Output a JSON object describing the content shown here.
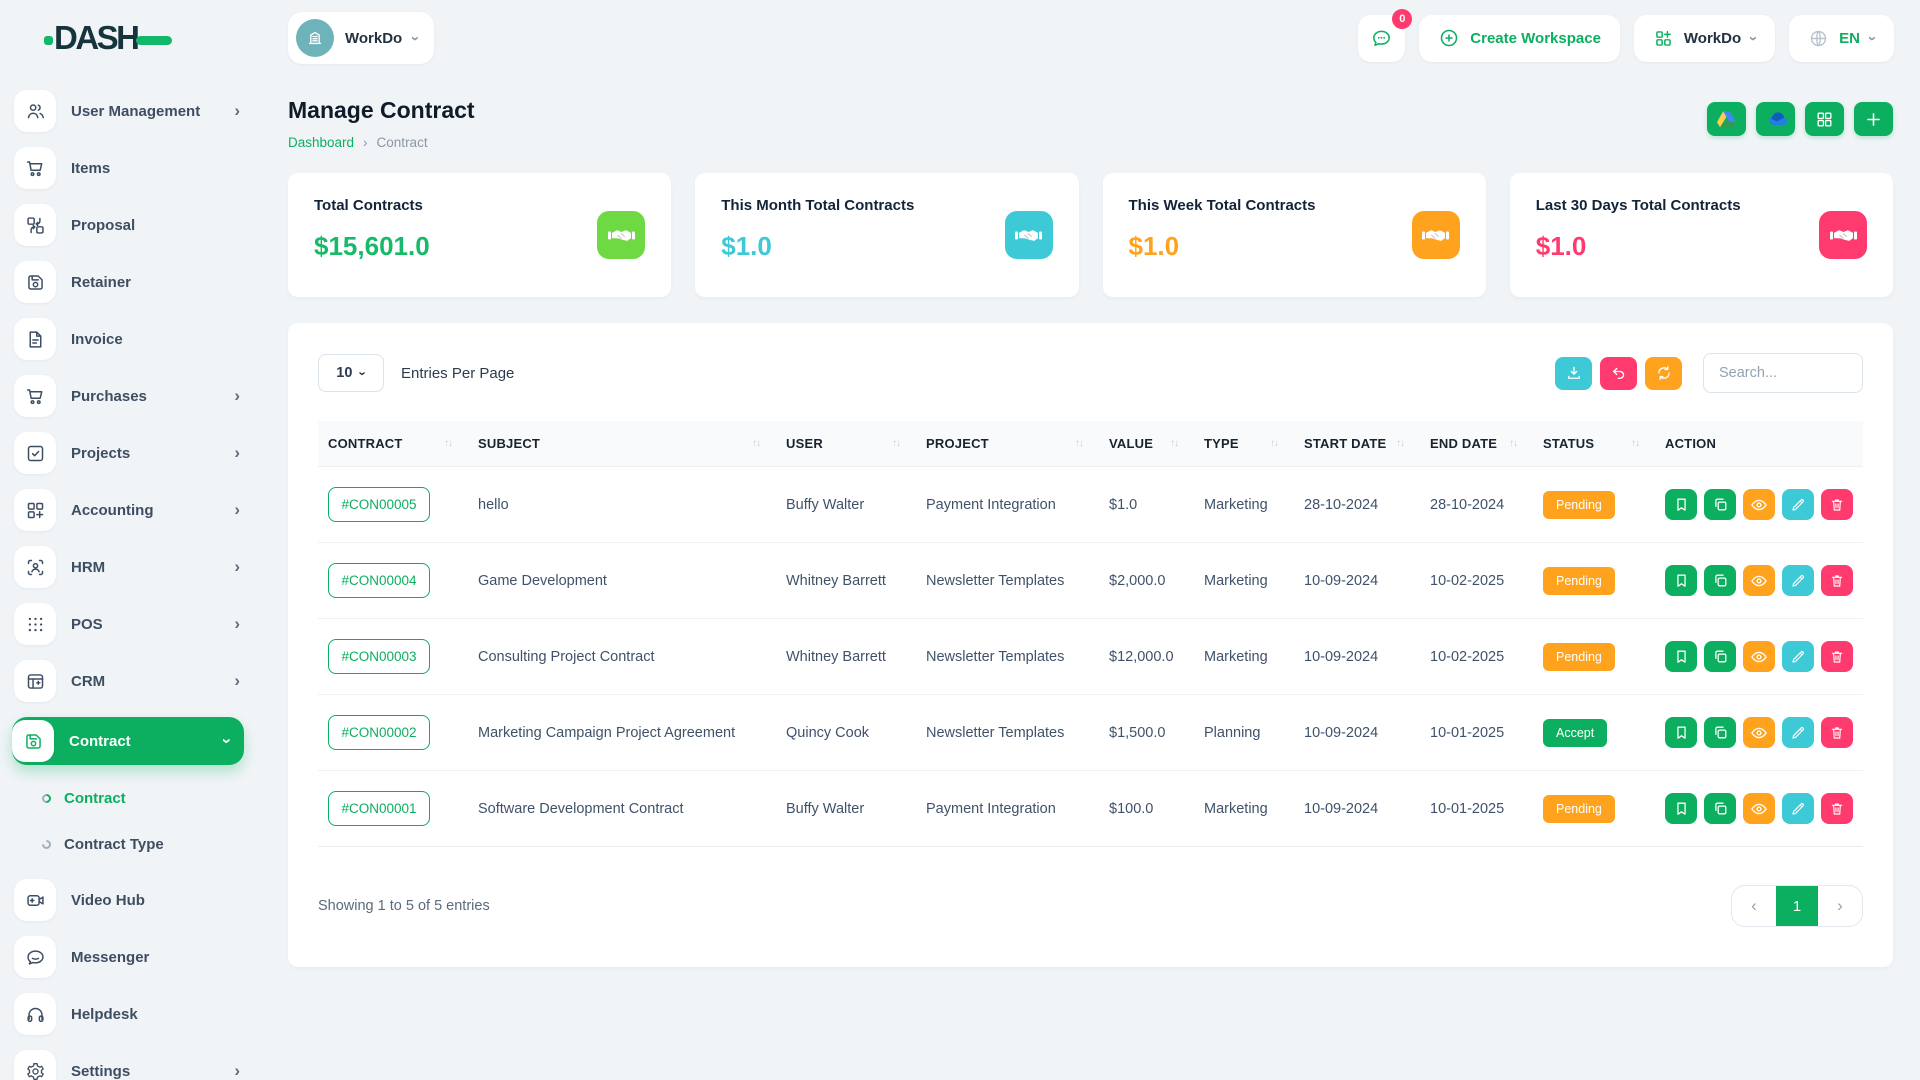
{
  "brand": {
    "name": "DASH"
  },
  "header": {
    "workspace_pill": "WorkDo",
    "chat_badge": "0",
    "create_workspace": "Create Workspace",
    "app_menu": "WorkDo",
    "language": "EN"
  },
  "sidebar": {
    "items": [
      {
        "label": "User Management",
        "icon": "users",
        "chevron": true
      },
      {
        "label": "Items",
        "icon": "cart"
      },
      {
        "label": "Proposal",
        "icon": "swap-grid"
      },
      {
        "label": "Retainer",
        "icon": "save"
      },
      {
        "label": "Invoice",
        "icon": "file-invoice"
      },
      {
        "label": "Purchases",
        "icon": "cart",
        "chevron": true
      },
      {
        "label": "Projects",
        "icon": "check-square",
        "chevron": true
      },
      {
        "label": "Accounting",
        "icon": "grid-plus",
        "chevron": true
      },
      {
        "label": "HRM",
        "icon": "user-scan",
        "chevron": true
      },
      {
        "label": "POS",
        "icon": "dots-grid",
        "chevron": true
      },
      {
        "label": "CRM",
        "icon": "crm-box",
        "chevron": true
      },
      {
        "label": "Contract",
        "icon": "save",
        "active": true,
        "expanded": true,
        "submenu": [
          {
            "label": "Contract",
            "active": true
          },
          {
            "label": "Contract Type",
            "active": false
          }
        ]
      },
      {
        "label": "Video Hub",
        "icon": "video"
      },
      {
        "label": "Messenger",
        "icon": "message"
      },
      {
        "label": "Helpdesk",
        "icon": "headset"
      },
      {
        "label": "Settings",
        "icon": "gear",
        "chevron": true
      }
    ]
  },
  "page": {
    "title": "Manage Contract",
    "breadcrumb": [
      "Dashboard",
      "Contract"
    ],
    "breadcrumb_sep": "›"
  },
  "quick_actions": [
    {
      "name": "google-drive"
    },
    {
      "name": "onedrive"
    },
    {
      "name": "grid"
    },
    {
      "name": "add"
    }
  ],
  "stats": [
    {
      "label": "Total Contracts",
      "value": "$15,601.0",
      "value_color": "#17ba68",
      "icon_color": "#6fd943",
      "icon": "handshake"
    },
    {
      "label": "This Month Total Contracts",
      "value": "$1.0",
      "value_color": "#3ec9d6",
      "icon_color": "#3ec9d6",
      "icon": "handshake"
    },
    {
      "label": "This Week Total Contracts",
      "value": "$1.0",
      "value_color": "#ffa21d",
      "icon_color": "#ffa21d",
      "icon": "handshake"
    },
    {
      "label": "Last 30 Days Total Contracts",
      "value": "$1.0",
      "value_color": "#ff3a6e",
      "icon_color": "#ff3a6e",
      "icon": "handshake"
    }
  ],
  "table": {
    "page_size": "10",
    "page_size_label": "Entries Per Page",
    "search_placeholder": "Search...",
    "toolbar_actions": [
      "download",
      "undo",
      "refresh"
    ],
    "columns": [
      {
        "label": "CONTRACT",
        "sortable": true
      },
      {
        "label": "SUBJECT",
        "sortable": true
      },
      {
        "label": "USER",
        "sortable": true
      },
      {
        "label": "PROJECT",
        "sortable": true
      },
      {
        "label": "VALUE",
        "sortable": true
      },
      {
        "label": "TYPE",
        "sortable": true
      },
      {
        "label": "START DATE",
        "sortable": true
      },
      {
        "label": "END DATE",
        "sortable": true
      },
      {
        "label": "STATUS",
        "sortable": true
      },
      {
        "label": "ACTION",
        "sortable": false
      }
    ],
    "row_actions": [
      "bookmark",
      "copy",
      "eye",
      "edit",
      "trash"
    ],
    "rows": [
      {
        "id": "#CON00005",
        "subject": "hello",
        "user": "Buffy Walter",
        "project": "Payment Integration",
        "value": "$1.0",
        "type": "Marketing",
        "start": "28-10-2024",
        "end": "28-10-2024",
        "status": "Pending",
        "status_kind": "warning"
      },
      {
        "id": "#CON00004",
        "subject": "Game Development",
        "user": "Whitney Barrett",
        "project": "Newsletter Templates",
        "value": "$2,000.0",
        "type": "Marketing",
        "start": "10-09-2024",
        "end": "10-02-2025",
        "status": "Pending",
        "status_kind": "warning"
      },
      {
        "id": "#CON00003",
        "subject": "Consulting Project Contract",
        "user": "Whitney Barrett",
        "project": "Newsletter Templates",
        "value": "$12,000.0",
        "type": "Marketing",
        "start": "10-09-2024",
        "end": "10-02-2025",
        "status": "Pending",
        "status_kind": "warning"
      },
      {
        "id": "#CON00002",
        "subject": "Marketing Campaign Project Agreement",
        "user": "Quincy Cook",
        "project": "Newsletter Templates",
        "value": "$1,500.0",
        "type": "Planning",
        "start": "10-09-2024",
        "end": "10-01-2025",
        "status": "Accept",
        "status_kind": "success"
      },
      {
        "id": "#CON00001",
        "subject": "Software Development Contract",
        "user": "Buffy Walter",
        "project": "Payment Integration",
        "value": "$100.0",
        "type": "Marketing",
        "start": "10-09-2024",
        "end": "10-01-2025",
        "status": "Pending",
        "status_kind": "warning"
      }
    ],
    "summary": "Showing 1 to 5 of 5 entries",
    "pagination": {
      "prev": "‹",
      "current": "1",
      "next": "›"
    }
  },
  "colors": {
    "primary": "#0caf60",
    "info": "#3ec9d6",
    "warning": "#ffa21d",
    "danger": "#ff3a6e"
  }
}
